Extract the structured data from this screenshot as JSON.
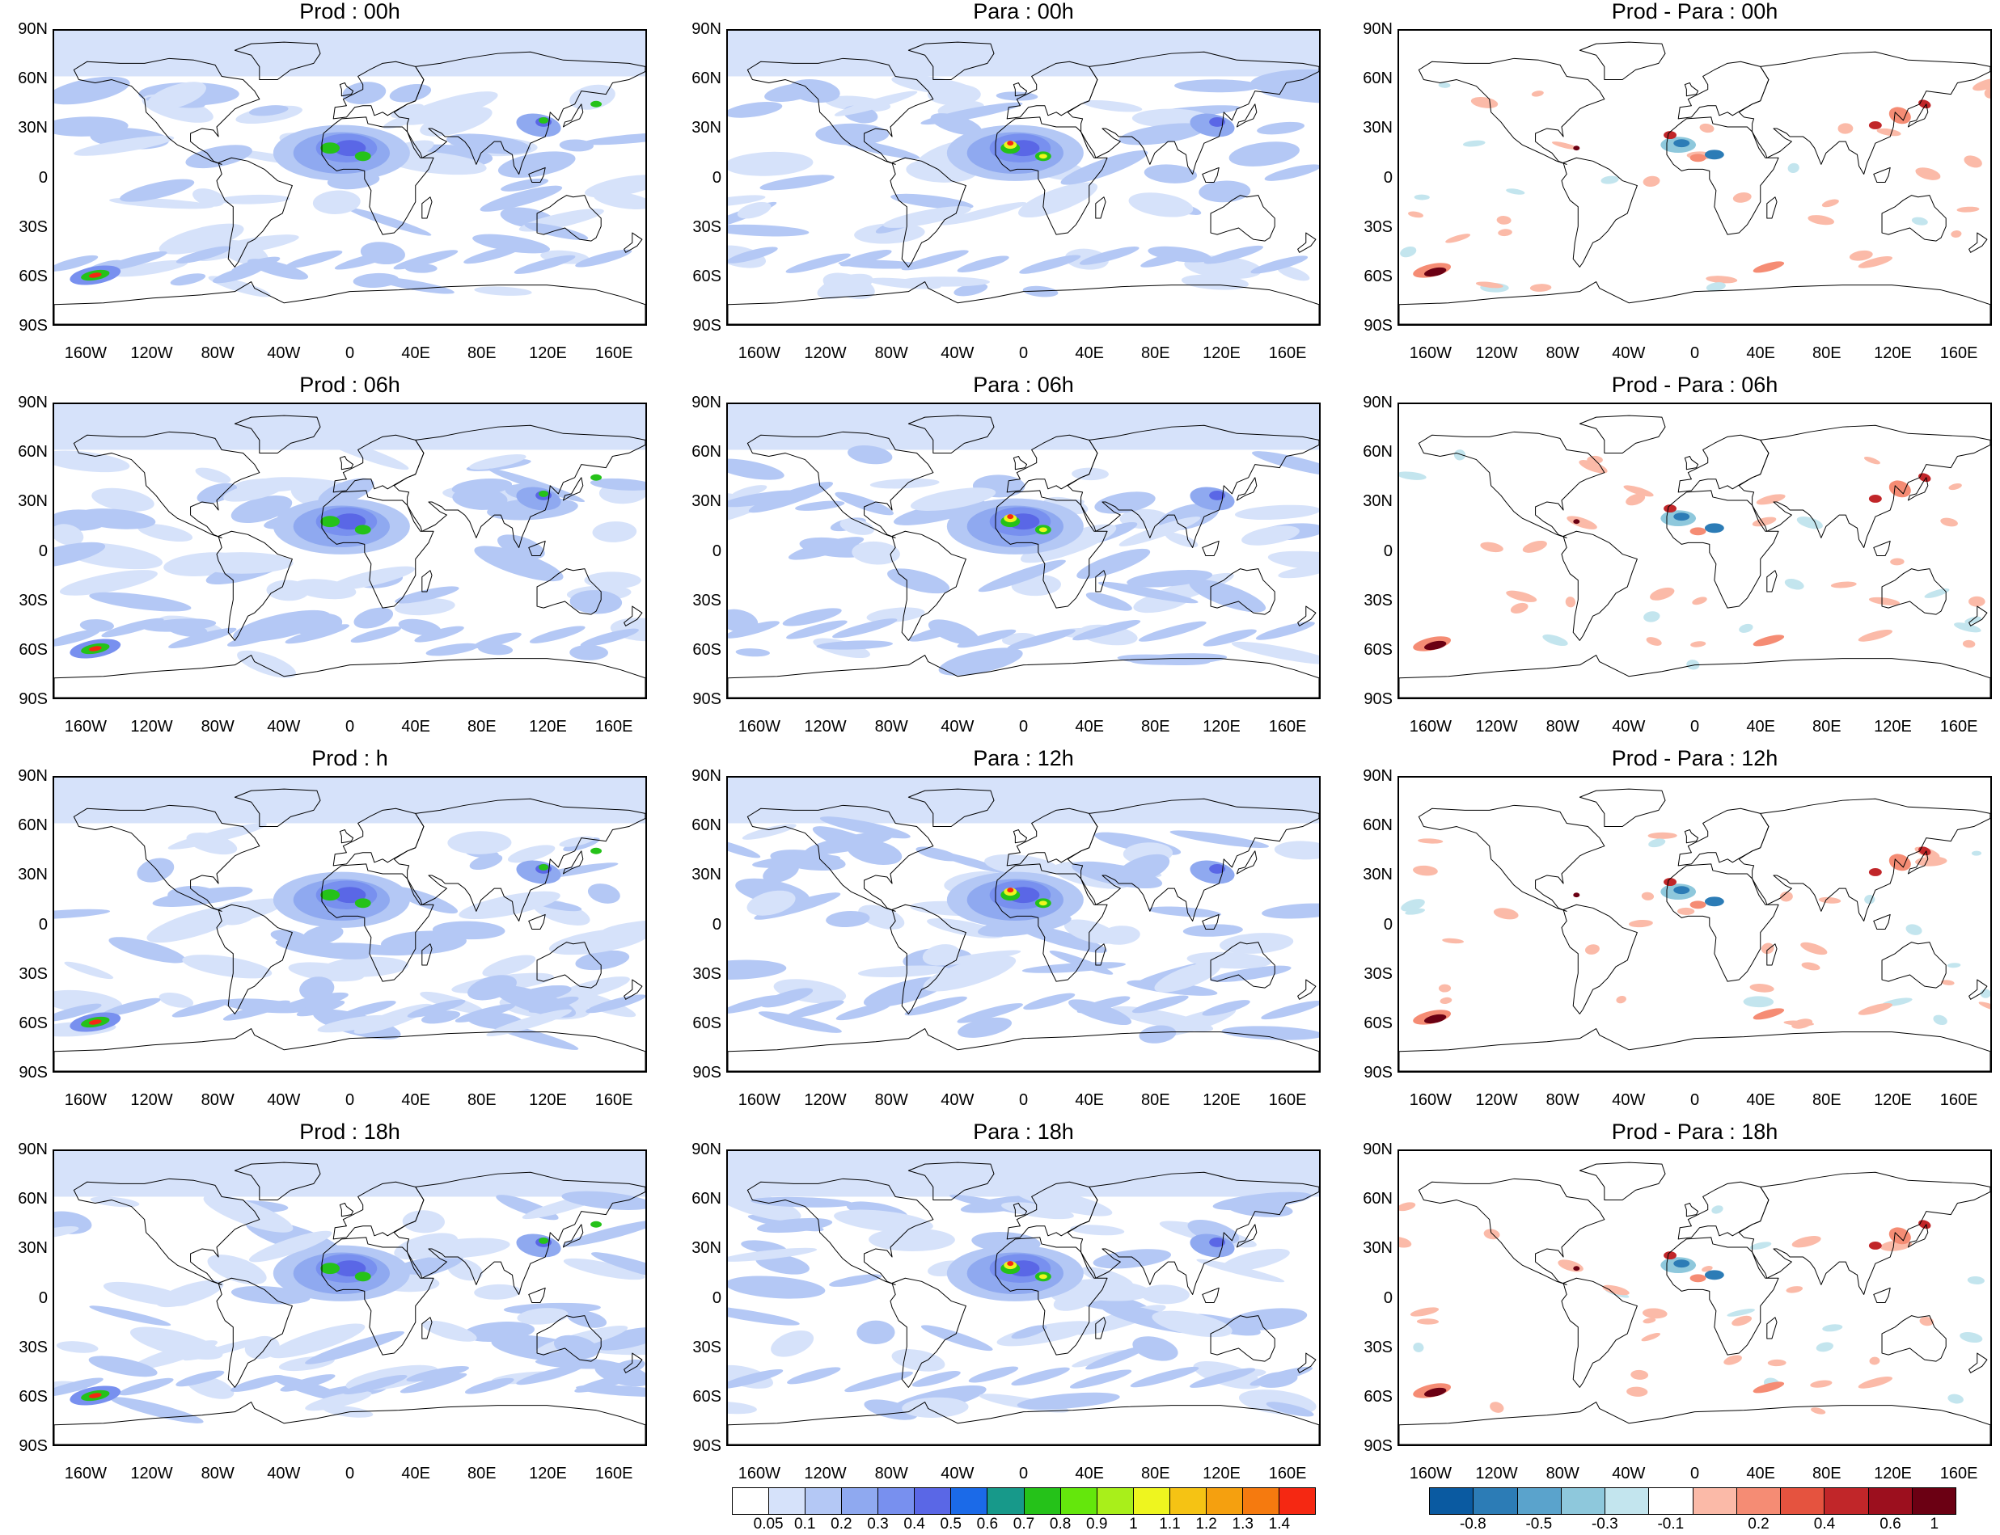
{
  "panels": [
    {
      "title": "Prod : 00h",
      "kind": "field"
    },
    {
      "title": "Para : 00h",
      "kind": "field"
    },
    {
      "title": "Prod - Para : 00h",
      "kind": "diff"
    },
    {
      "title": "Prod : 06h",
      "kind": "field"
    },
    {
      "title": "Para : 06h",
      "kind": "field"
    },
    {
      "title": "Prod - Para : 06h",
      "kind": "diff"
    },
    {
      "title": "Prod : h",
      "kind": "field"
    },
    {
      "title": "Para : 12h",
      "kind": "field"
    },
    {
      "title": "Prod - Para : 12h",
      "kind": "diff"
    },
    {
      "title": "Prod : 18h",
      "kind": "field"
    },
    {
      "title": "Para : 18h",
      "kind": "field"
    },
    {
      "title": "Prod - Para : 18h",
      "kind": "diff"
    }
  ],
  "lat_labels": [
    "90N",
    "60N",
    "30N",
    "0",
    "30S",
    "60S",
    "90S"
  ],
  "lon_labels": [
    "160W",
    "120W",
    "80W",
    "40W",
    "0",
    "40E",
    "80E",
    "120E",
    "160E"
  ],
  "field_colorbar": {
    "labels": [
      "0.05",
      "0.1",
      "0.2",
      "0.3",
      "0.4",
      "0.5",
      "0.6",
      "0.7",
      "0.8",
      "0.9",
      "1",
      "1.1",
      "1.2",
      "1.3",
      "1.4"
    ],
    "colors": [
      "#ffffff",
      "#d6e2fa",
      "#b4c8f5",
      "#8fa9f0",
      "#7890ef",
      "#5a67e6",
      "#1b6ae8",
      "#17998a",
      "#25c219",
      "#64e70c",
      "#a9ef1a",
      "#eef51f",
      "#f5c314",
      "#f5a00f",
      "#f57a0f",
      "#f52812"
    ]
  },
  "diff_colorbar": {
    "labels": [
      "-0.8",
      "-0.5",
      "-0.3",
      "-0.1",
      "0.2",
      "0.4",
      "0.6",
      "1"
    ],
    "colors": [
      "#0a5aa1",
      "#2c7cb6",
      "#5aa3cc",
      "#8ec8dc",
      "#c3e5ee",
      "#ffffff",
      "#fbbaa8",
      "#f58c74",
      "#e5533f",
      "#c12629",
      "#9c0f1e",
      "#6b0013"
    ]
  },
  "field_colors": {
    "c1": "#d6e2fa",
    "c2": "#b4c8f5",
    "c3": "#8fa9f0",
    "c4": "#7890ef",
    "c5": "#5a67e6",
    "c6": "#25c219",
    "c7": "#eef51f",
    "c8": "#f52812"
  },
  "diff_colors": {
    "neg1": "#c3e5ee",
    "neg2": "#8ec8dc",
    "neg3": "#2c7cb6",
    "pos1": "#fbbaa8",
    "pos2": "#f58c74",
    "pos3": "#c12629",
    "pos4": "#6b0013"
  }
}
